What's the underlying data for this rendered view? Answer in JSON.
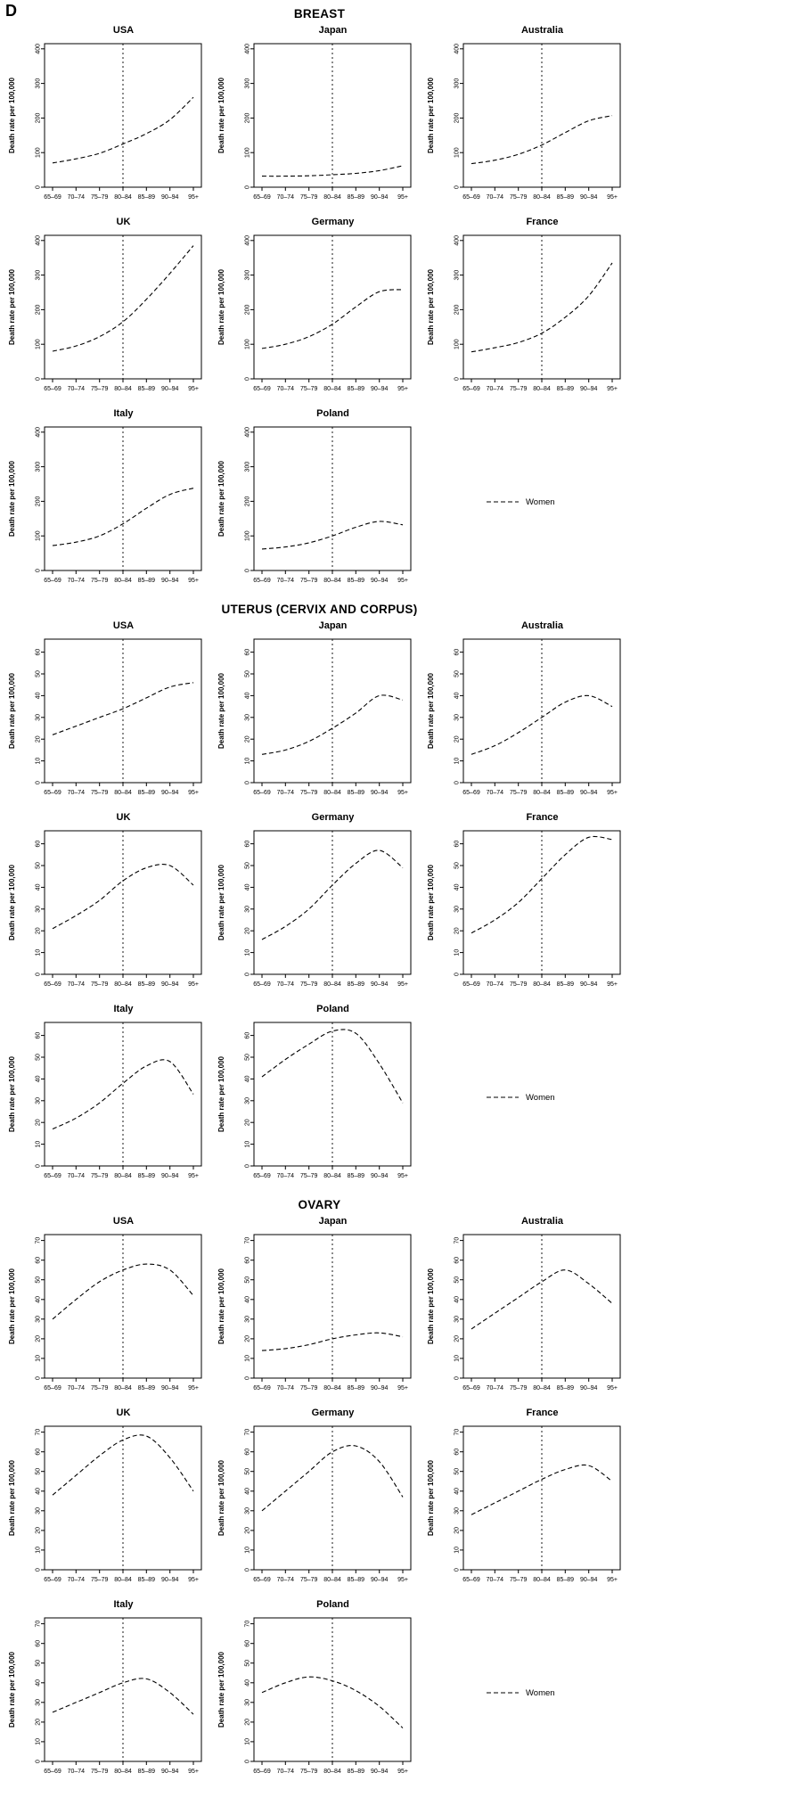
{
  "figure_label": "D",
  "legend_label": "Women",
  "ylabel": "Death rate per 100,000",
  "age_groups": [
    "65–69",
    "70–74",
    "75–79",
    "80–84",
    "85–89",
    "90–94",
    "95+"
  ],
  "reference_age_group": "80–84",
  "chart_data": [
    {
      "type": "line",
      "title": "BREAST",
      "ylabel": "Death rate per 100,000",
      "x": [
        "65–69",
        "70–74",
        "75–79",
        "80–84",
        "85–89",
        "90–94",
        "95+"
      ],
      "ylim": [
        0,
        415
      ],
      "yticks": [
        0,
        100,
        200,
        300,
        400
      ],
      "vline_x": "80–84",
      "line_style": "dashed",
      "legend": [
        "Women"
      ],
      "series": [
        {
          "name": "USA",
          "values": [
            70,
            82,
            98,
            125,
            155,
            195,
            260
          ]
        },
        {
          "name": "Japan",
          "values": [
            32,
            32,
            33,
            36,
            40,
            48,
            62
          ]
        },
        {
          "name": "Australia",
          "values": [
            68,
            78,
            95,
            122,
            158,
            192,
            207
          ]
        },
        {
          "name": "UK",
          "values": [
            80,
            95,
            122,
            165,
            230,
            305,
            385
          ]
        },
        {
          "name": "Germany",
          "values": [
            88,
            100,
            122,
            158,
            208,
            252,
            258
          ]
        },
        {
          "name": "France",
          "values": [
            78,
            90,
            105,
            132,
            178,
            240,
            335
          ]
        },
        {
          "name": "Italy",
          "values": [
            72,
            82,
            100,
            135,
            180,
            220,
            238
          ]
        },
        {
          "name": "Poland",
          "values": [
            62,
            68,
            80,
            100,
            125,
            142,
            132
          ]
        }
      ]
    },
    {
      "type": "line",
      "title": "UTERUS (CERVIX AND CORPUS)",
      "ylabel": "Death rate per 100,000",
      "x": [
        "65–69",
        "70–74",
        "75–79",
        "80–84",
        "85–89",
        "90–94",
        "95+"
      ],
      "ylim": [
        0,
        66
      ],
      "yticks": [
        0,
        10,
        20,
        30,
        40,
        50,
        60
      ],
      "vline_x": "80–84",
      "line_style": "dashed",
      "legend": [
        "Women"
      ],
      "series": [
        {
          "name": "USA",
          "values": [
            22,
            26,
            30,
            34,
            39,
            44,
            46
          ]
        },
        {
          "name": "Japan",
          "values": [
            13,
            15,
            19,
            25,
            32,
            40,
            38
          ]
        },
        {
          "name": "Australia",
          "values": [
            13,
            17,
            23,
            30,
            37,
            40,
            35
          ]
        },
        {
          "name": "UK",
          "values": [
            21,
            27,
            34,
            43,
            49,
            50,
            41
          ]
        },
        {
          "name": "Germany",
          "values": [
            16,
            22,
            30,
            41,
            51,
            57,
            49
          ]
        },
        {
          "name": "France",
          "values": [
            19,
            25,
            33,
            44,
            55,
            63,
            62
          ]
        },
        {
          "name": "Italy",
          "values": [
            17,
            22,
            29,
            38,
            46,
            48,
            33
          ]
        },
        {
          "name": "Poland",
          "values": [
            41,
            49,
            56,
            62,
            61,
            47,
            29
          ]
        }
      ]
    },
    {
      "type": "line",
      "title": "OVARY",
      "ylabel": "Death rate per 100,000",
      "x": [
        "65–69",
        "70–74",
        "75–79",
        "80–84",
        "85–89",
        "90–94",
        "95+"
      ],
      "ylim": [
        0,
        73
      ],
      "yticks": [
        0,
        10,
        20,
        30,
        40,
        50,
        60,
        70
      ],
      "vline_x": "80–84",
      "line_style": "dashed",
      "legend": [
        "Women"
      ],
      "series": [
        {
          "name": "USA",
          "values": [
            30,
            40,
            49,
            55,
            58,
            55,
            42
          ]
        },
        {
          "name": "Japan",
          "values": [
            14,
            15,
            17,
            20,
            22,
            23,
            21
          ]
        },
        {
          "name": "Australia",
          "values": [
            25,
            33,
            41,
            49,
            55,
            48,
            38
          ]
        },
        {
          "name": "UK",
          "values": [
            38,
            48,
            58,
            66,
            68,
            57,
            40
          ]
        },
        {
          "name": "Germany",
          "values": [
            30,
            40,
            50,
            60,
            63,
            55,
            37
          ]
        },
        {
          "name": "France",
          "values": [
            28,
            34,
            40,
            46,
            51,
            53,
            45
          ]
        },
        {
          "name": "Italy",
          "values": [
            25,
            30,
            35,
            40,
            42,
            35,
            24
          ]
        },
        {
          "name": "Poland",
          "values": [
            35,
            40,
            43,
            41,
            36,
            28,
            17
          ]
        }
      ]
    }
  ]
}
